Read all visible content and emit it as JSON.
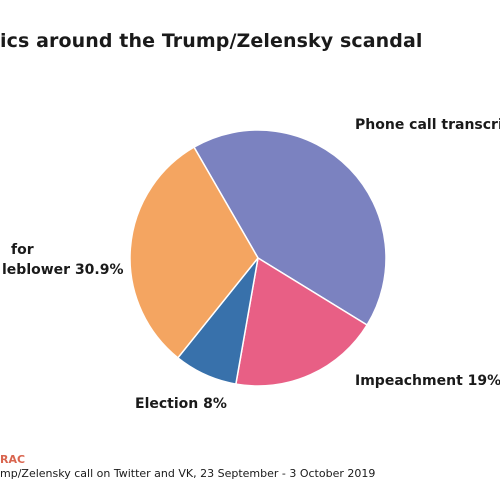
{
  "chart_data": {
    "type": "pie",
    "title": "ics around the Trump/Zelensky scandal",
    "slices": [
      {
        "label": "Phone call transcrip",
        "label_line2": "",
        "value": 42.1,
        "color": "#7b82c0"
      },
      {
        "label": "Impeachment 19%",
        "label_line2": "",
        "value": 19.0,
        "color": "#e85f85"
      },
      {
        "label": "Election 8%",
        "label_line2": "",
        "value": 8.0,
        "color": "#3871ab"
      },
      {
        "label": "for",
        "label_line2": "leblower 30.9%",
        "value": 30.9,
        "color": "#f4a561"
      }
    ]
  },
  "footer": {
    "source_name": "RAC",
    "note": "mp/Zelensky call on Twitter and VK, 23 September - 3  October 2019"
  },
  "colors": {
    "source_accent": "#d9654f"
  }
}
